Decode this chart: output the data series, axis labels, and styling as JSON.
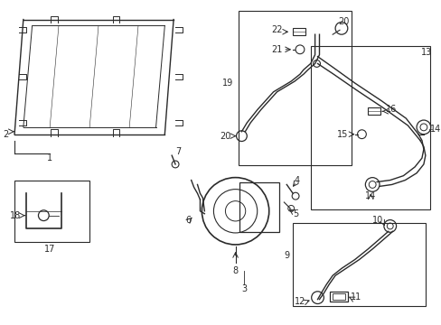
{
  "bg_color": "#ffffff",
  "line_color": "#2a2a2a",
  "fig_width": 4.89,
  "fig_height": 3.6,
  "dpi": 100,
  "fs": 7.0
}
